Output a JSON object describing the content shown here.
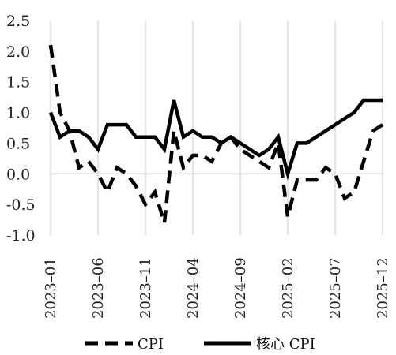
{
  "chart_data": {
    "type": "line",
    "title": "",
    "xlabel": "",
    "ylabel": "",
    "ylim": [
      -1.0,
      2.5
    ],
    "yticks": [
      "2.5",
      "2.0",
      "1.5",
      "1.0",
      "0.5",
      "0.0",
      "-0.5",
      "-1.0"
    ],
    "ytick_values": [
      2.5,
      2.0,
      1.5,
      1.0,
      0.5,
      0.0,
      -0.5,
      -1.0
    ],
    "xtick_labels": [
      "2023–01",
      "2023–06",
      "2023–11",
      "2024–04",
      "2024–09",
      "2025–02",
      "2025–07",
      "2025–12"
    ],
    "x": [
      "2023-01",
      "2023-02",
      "2023-03",
      "2023-04",
      "2023-05",
      "2023-06",
      "2023-07",
      "2023-08",
      "2023-09",
      "2023-10",
      "2023-11",
      "2023-12",
      "2024-01",
      "2024-02",
      "2024-03",
      "2024-04",
      "2024-05",
      "2024-06",
      "2024-07",
      "2024-08",
      "2024-09",
      "2024-10",
      "2024-11",
      "2024-12",
      "2025-01",
      "2025-02",
      "2025-03",
      "2025-04",
      "2025-05",
      "2025-06",
      "2025-07",
      "2025-08",
      "2025-09",
      "2025-10",
      "2025-11",
      "2025-12"
    ],
    "grid": "vertical",
    "legend_position": "bottom",
    "series": [
      {
        "name": "CPI",
        "style": "dashed",
        "color": "#000000",
        "values": [
          2.1,
          1.0,
          0.7,
          0.1,
          0.2,
          0.0,
          -0.3,
          0.1,
          0.0,
          -0.2,
          -0.5,
          -0.3,
          -0.8,
          0.7,
          0.1,
          0.3,
          0.3,
          0.2,
          0.5,
          0.6,
          0.4,
          0.3,
          0.2,
          0.1,
          0.5,
          -0.7,
          -0.1,
          -0.1,
          -0.1,
          0.1,
          0.0,
          -0.4,
          -0.3,
          0.2,
          0.7,
          0.8
        ]
      },
      {
        "name": "核心 CPI",
        "style": "solid",
        "color": "#000000",
        "values": [
          1.0,
          0.6,
          0.7,
          0.7,
          0.6,
          0.4,
          0.8,
          0.8,
          0.8,
          0.6,
          0.6,
          0.6,
          0.4,
          1.2,
          0.6,
          0.7,
          0.6,
          0.6,
          0.5,
          0.6,
          0.5,
          0.4,
          0.3,
          0.4,
          0.6,
          0.0,
          0.5,
          0.5,
          0.6,
          0.7,
          0.8,
          0.9,
          1.0,
          1.2,
          1.2,
          1.2
        ]
      }
    ]
  }
}
